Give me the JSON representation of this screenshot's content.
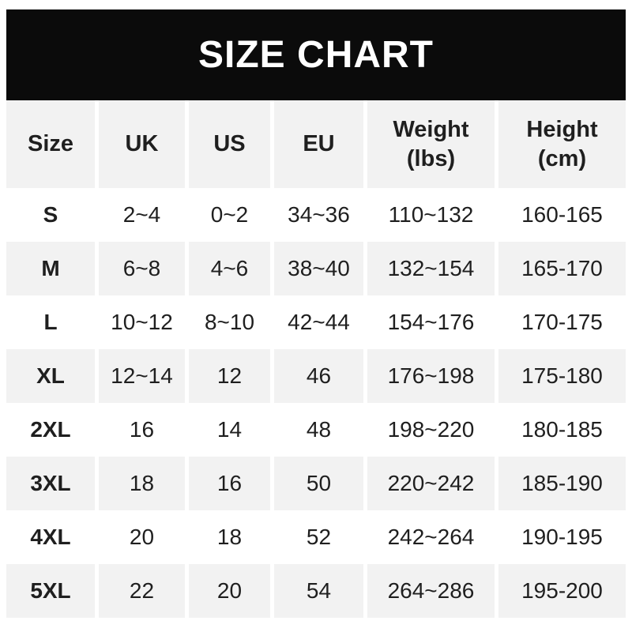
{
  "banner": {
    "title": "SIZE CHART"
  },
  "chart_data": {
    "type": "table",
    "title": "SIZE CHART",
    "columns": [
      {
        "key": "size",
        "label": "Size",
        "sub": ""
      },
      {
        "key": "uk",
        "label": "UK",
        "sub": ""
      },
      {
        "key": "us",
        "label": "US",
        "sub": ""
      },
      {
        "key": "eu",
        "label": "EU",
        "sub": ""
      },
      {
        "key": "weight-lbs",
        "label": "Weight",
        "sub": "(lbs)"
      },
      {
        "key": "height-cm",
        "label": "Height",
        "sub": "(cm)"
      }
    ],
    "rows": [
      [
        "S",
        "2~4",
        "0~2",
        "34~36",
        "110~132",
        "160-165"
      ],
      [
        "M",
        "6~8",
        "4~6",
        "38~40",
        "132~154",
        "165-170"
      ],
      [
        "L",
        "10~12",
        "8~10",
        "42~44",
        "154~176",
        "170-175"
      ],
      [
        "XL",
        "12~14",
        "12",
        "46",
        "176~198",
        "175-180"
      ],
      [
        "2XL",
        "16",
        "14",
        "48",
        "198~220",
        "180-185"
      ],
      [
        "3XL",
        "18",
        "16",
        "50",
        "220~242",
        "185-190"
      ],
      [
        "4XL",
        "20",
        "18",
        "52",
        "242~264",
        "190-195"
      ],
      [
        "5XL",
        "22",
        "20",
        "54",
        "264~286",
        "195-200"
      ]
    ]
  },
  "colors": {
    "banner-bg": "#0b0b0b",
    "banner-text": "#ffffff",
    "stripe": "#f2f2f2",
    "row-bg": "#ffffff",
    "text": "#1f1f1f"
  }
}
